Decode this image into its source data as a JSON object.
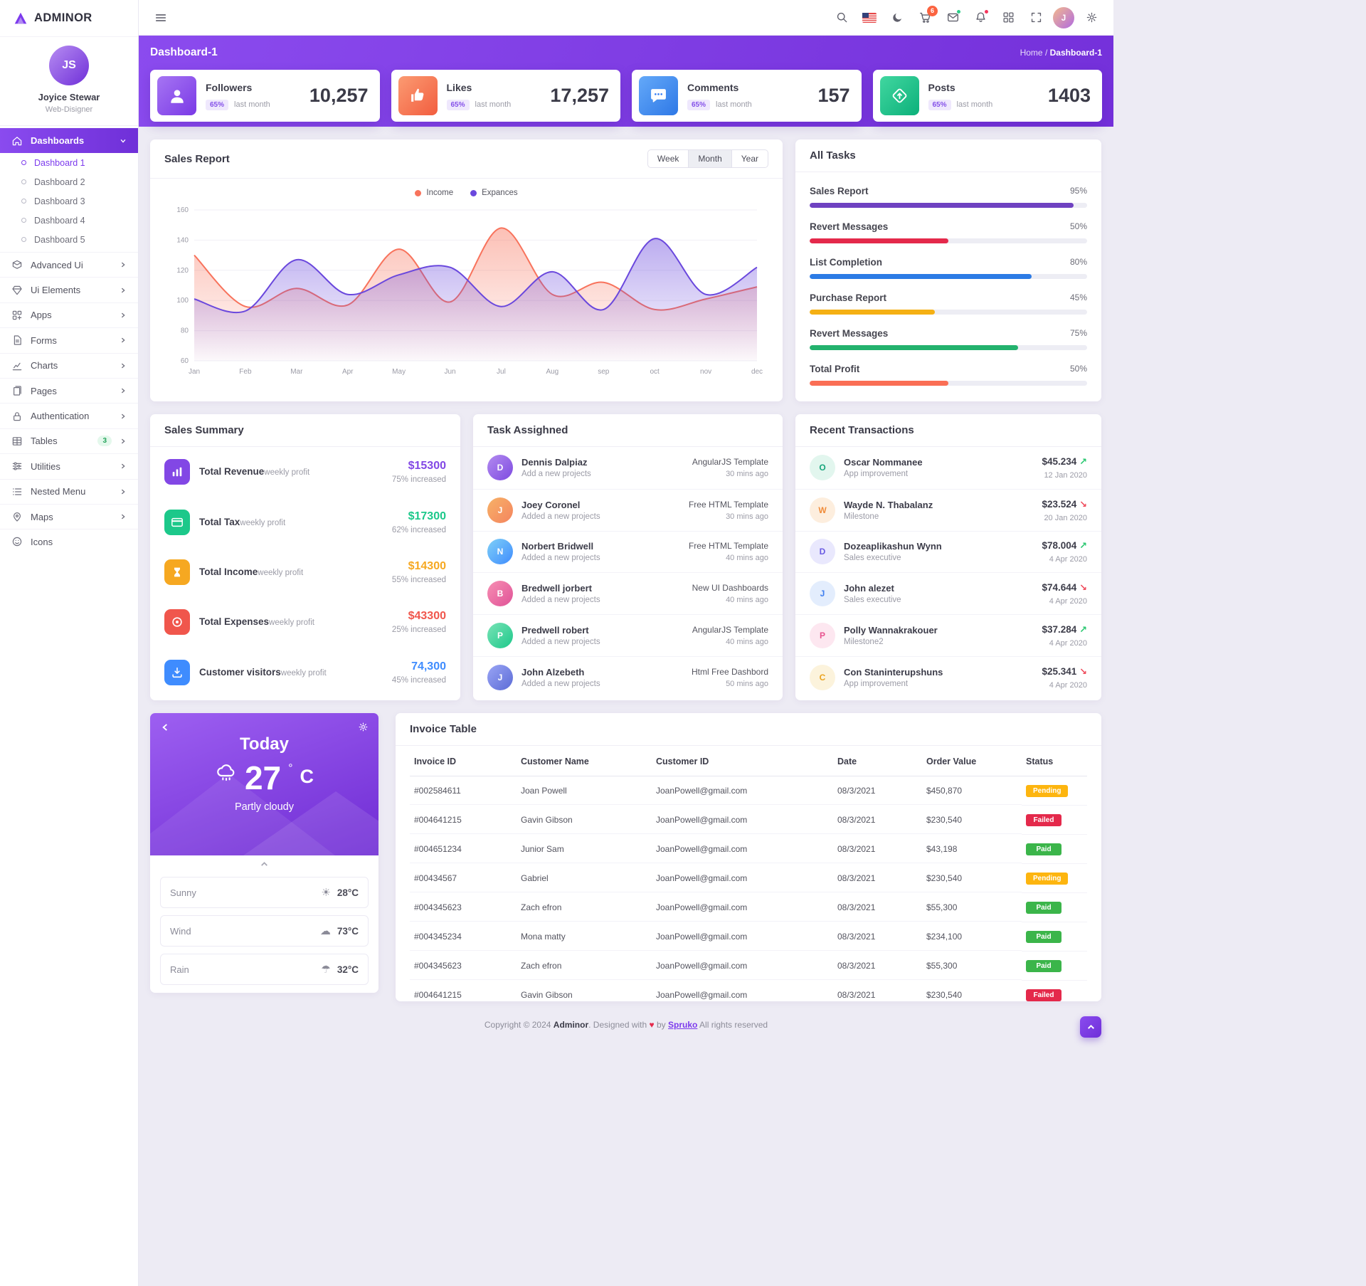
{
  "brand": {
    "name": "ADMINOR"
  },
  "sidebar": {
    "profile": {
      "name": "Joyice Stewar",
      "role": "Web-Disigner",
      "initials": "JS"
    },
    "dashboards_label": "Dashboards",
    "dashboard_children": [
      {
        "label": "Dashboard 1"
      },
      {
        "label": "Dashboard 2"
      },
      {
        "label": "Dashboard 3"
      },
      {
        "label": "Dashboard 4"
      },
      {
        "label": "Dashboard 5"
      }
    ],
    "items": [
      {
        "label": "Advanced Ui"
      },
      {
        "label": "Ui Elements"
      },
      {
        "label": "Apps"
      },
      {
        "label": "Forms"
      },
      {
        "label": "Charts"
      },
      {
        "label": "Pages"
      },
      {
        "label": "Authentication"
      },
      {
        "label": "Tables",
        "badge": "3"
      },
      {
        "label": "Utilities"
      },
      {
        "label": "Nested Menu"
      },
      {
        "label": "Maps"
      },
      {
        "label": "Icons"
      }
    ]
  },
  "header": {
    "cart_badge": "6"
  },
  "banner": {
    "title": "Dashboard-1",
    "breadcrumb_home": "Home",
    "breadcrumb_sep": "/",
    "breadcrumb_current": "Dashboard-1"
  },
  "stats": [
    {
      "label": "Followers",
      "badge": "65%",
      "period": "last month",
      "value": "10,257"
    },
    {
      "label": "Likes",
      "badge": "65%",
      "period": "last month",
      "value": "17,257"
    },
    {
      "label": "Comments",
      "badge": "65%",
      "period": "last month",
      "value": "157"
    },
    {
      "label": "Posts",
      "badge": "65%",
      "period": "last month",
      "value": "1403"
    }
  ],
  "sales_report": {
    "title": "Sales Report",
    "toggles": [
      "Week",
      "Month",
      "Year"
    ],
    "active_toggle": "Month",
    "chart_data": {
      "type": "area",
      "x": [
        "Jan",
        "Feb",
        "Mar",
        "Apr",
        "May",
        "Jun",
        "Jul",
        "Aug",
        "sep",
        "oct",
        "nov",
        "dec"
      ],
      "series": [
        {
          "name": "Income",
          "color": "#f8735c",
          "values": [
            130,
            96,
            108,
            97,
            134,
            99,
            148,
            104,
            112,
            94,
            101,
            109
          ]
        },
        {
          "name": "Expances",
          "color": "#6a48dd",
          "values": [
            101,
            93,
            127,
            104,
            117,
            122,
            96,
            119,
            94,
            141,
            104,
            122
          ]
        }
      ],
      "ylim": [
        60,
        160
      ],
      "yticks": [
        60,
        80,
        100,
        120,
        140,
        160
      ],
      "grid": true,
      "legend_position": "top"
    }
  },
  "all_tasks": {
    "title": "All Tasks",
    "items": [
      {
        "label": "Sales Report",
        "percent": "95%",
        "bar_style": "width:95%;background:#6f42c1"
      },
      {
        "label": "Revert Messages",
        "percent": "50%",
        "bar_style": "width:50%;background:#e4294b"
      },
      {
        "label": "List Completion",
        "percent": "80%",
        "bar_style": "width:80%;background:#2c7be5"
      },
      {
        "label": "Purchase Report",
        "percent": "45%",
        "bar_style": "width:45%;background:#f5b014"
      },
      {
        "label": "Revert Messages",
        "percent": "75%",
        "bar_style": "width:75%;background:#23b26d"
      },
      {
        "label": "Total Profit",
        "percent": "50%",
        "bar_style": "width:50%;background:#fa6e55"
      }
    ]
  },
  "sales_summary": {
    "title": "Sales Summary",
    "items": [
      {
        "label": "Total Revenue",
        "sub": "weekly profit",
        "value": "$15300",
        "change": "75% increased",
        "icon_style": "background:#8247e5",
        "value_style": "color:#8247e5"
      },
      {
        "label": "Total Tax",
        "sub": "weekly profit",
        "value": "$17300",
        "change": "62% increased",
        "icon_style": "background:#1cc88a",
        "value_style": "color:#1cc88a"
      },
      {
        "label": "Total Income",
        "sub": "weekly profit",
        "value": "$14300",
        "change": "55% increased",
        "icon_style": "background:#f6a821",
        "value_style": "color:#f6a821"
      },
      {
        "label": "Total Expenses",
        "sub": "weekly profit",
        "value": "$43300",
        "change": "25% increased",
        "icon_style": "background:#f0564c",
        "value_style": "color:#f0564c"
      },
      {
        "label": "Customer visitors",
        "sub": "weekly profit",
        "value": "74,300",
        "change": "45% increased",
        "icon_style": "background:#3f8cfe",
        "value_style": "color:#3f8cfe"
      }
    ]
  },
  "tasks_assigned": {
    "title": "Task Assighned",
    "items": [
      {
        "initial": "D",
        "avatar_style": "background:linear-gradient(135deg,#b38bf0,#7d4ae0)",
        "name": "Dennis Dalpiaz",
        "action": "Add a new projects",
        "meta": "AngularJS Template",
        "time": "30 mins ago"
      },
      {
        "initial": "J",
        "avatar_style": "background:linear-gradient(135deg,#f7b267,#f4845f)",
        "name": "Joey Coronel",
        "action": "Added a new projects",
        "meta": "Free HTML Template",
        "time": "30 mins ago"
      },
      {
        "initial": "N",
        "avatar_style": "background:linear-gradient(135deg,#7fd0f7,#3f8cfe)",
        "name": "Norbert Bridwell",
        "action": "Added a new projects",
        "meta": "Free HTML Template",
        "time": "40 mins ago"
      },
      {
        "initial": "B",
        "avatar_style": "background:linear-gradient(135deg,#f78fb3,#e05297)",
        "name": "Bredwell jorbert",
        "action": "Added a new projects",
        "meta": "New UI Dashboards",
        "time": "40 mins ago"
      },
      {
        "initial": "P",
        "avatar_style": "background:linear-gradient(135deg,#79e3b6,#1cc88a)",
        "name": "Predwell robert",
        "action": "Added a new projects",
        "meta": "AngularJS Template",
        "time": "40 mins ago"
      },
      {
        "initial": "J",
        "avatar_style": "background:linear-gradient(135deg,#9aa5f5,#5b6bd6)",
        "name": "John Alzebeth",
        "action": "Added a new projects",
        "meta": "Html Free Dashbord",
        "time": "50 mins ago"
      }
    ]
  },
  "transactions": {
    "title": "Recent Transactions",
    "items": [
      {
        "initial": "O",
        "avatar_style": "background:#e2f6ee;color:#18a57c",
        "name": "Oscar Nommanee",
        "role": "App improvement",
        "amount": "$45.234",
        "arrow": "↗",
        "arrow_style": "color:#28c76f",
        "date": "12 Jan 2020"
      },
      {
        "initial": "W",
        "avatar_style": "background:#fdeede;color:#f08c3a",
        "name": "Wayde N. Thabalanz",
        "role": "Milestone",
        "amount": "$23.524",
        "arrow": "↘",
        "arrow_style": "color:#ef4a5a",
        "date": "20 Jan 2020"
      },
      {
        "initial": "D",
        "avatar_style": "background:#e9e8fd;color:#6a5be2",
        "name": "Dozeaplikashun Wynn",
        "role": "Sales executive",
        "amount": "$78.004",
        "arrow": "↗",
        "arrow_style": "color:#28c76f",
        "date": "4 Apr 2020"
      },
      {
        "initial": "J",
        "avatar_style": "background:#e3edfd;color:#3e7ef0",
        "name": "John alezet",
        "role": "Sales executive",
        "amount": "$74.644",
        "arrow": "↘",
        "arrow_style": "color:#ef4a5a",
        "date": "4 Apr 2020"
      },
      {
        "initial": "P",
        "avatar_style": "background:#fde7f0;color:#e8538f",
        "name": "Polly Wannakrakouer",
        "role": "Milestone2",
        "amount": "$37.284",
        "arrow": "↗",
        "arrow_style": "color:#28c76f",
        "date": "4 Apr 2020"
      },
      {
        "initial": "C",
        "avatar_style": "background:#fcf3dc;color:#eaa31f",
        "name": "Con Staninterupshuns",
        "role": "App improvement",
        "amount": "$25.341",
        "arrow": "↘",
        "arrow_style": "color:#ef4a5a",
        "date": "4 Apr 2020"
      }
    ]
  },
  "weather": {
    "title": "Today",
    "temp_value": "27",
    "temp_deg": "°",
    "temp_unit": "C",
    "condition": "Partly cloudy",
    "rows": [
      {
        "label": "Sunny",
        "icon": "☀",
        "value": "28°C"
      },
      {
        "label": "Wind",
        "icon": "☁",
        "value": "73°C"
      },
      {
        "label": "Rain",
        "icon": "☂",
        "value": "32°C"
      }
    ]
  },
  "invoice": {
    "title": "Invoice Table",
    "columns": [
      "Invoice ID",
      "Customer Name",
      "Customer ID",
      "Date",
      "Order Value",
      "Status"
    ],
    "rows": [
      {
        "id": "#002584611",
        "customer": "Joan Powell",
        "email": "JoanPowell@gmail.com",
        "date": "08/3/2021",
        "value": "$450,870",
        "status": "Pending",
        "status_style": "background:#fdb50f"
      },
      {
        "id": "#004641215",
        "customer": "Gavin Gibson",
        "email": "JoanPowell@gmail.com",
        "date": "08/3/2021",
        "value": "$230,540",
        "status": "Failed",
        "status_style": "background:#e4294b"
      },
      {
        "id": "#004651234",
        "customer": "Junior Sam",
        "email": "JoanPowell@gmail.com",
        "date": "08/3/2021",
        "value": "$43,198",
        "status": "Paid",
        "status_style": "background:#3bb54a"
      },
      {
        "id": "#00434567",
        "customer": "Gabriel",
        "email": "JoanPowell@gmail.com",
        "date": "08/3/2021",
        "value": "$230,540",
        "status": "Pending",
        "status_style": "background:#fdb50f"
      },
      {
        "id": "#004345623",
        "customer": "Zach efron",
        "email": "JoanPowell@gmail.com",
        "date": "08/3/2021",
        "value": "$55,300",
        "status": "Paid",
        "status_style": "background:#3bb54a"
      },
      {
        "id": "#004345234",
        "customer": "Mona matty",
        "email": "JoanPowell@gmail.com",
        "date": "08/3/2021",
        "value": "$234,100",
        "status": "Paid",
        "status_style": "background:#3bb54a"
      },
      {
        "id": "#004345623",
        "customer": "Zach efron",
        "email": "JoanPowell@gmail.com",
        "date": "08/3/2021",
        "value": "$55,300",
        "status": "Paid",
        "status_style": "background:#3bb54a"
      },
      {
        "id": "#004641215",
        "customer": "Gavin Gibson",
        "email": "JoanPowell@gmail.com",
        "date": "08/3/2021",
        "value": "$230,540",
        "status": "Failed",
        "status_style": "background:#e4294b"
      }
    ]
  },
  "footer": {
    "copyright": "Copyright © 2024",
    "brand": "Adminor",
    "designed": ". Designed with",
    "heart": "♥",
    "by": "by",
    "link": "Spruko",
    "rights": "All rights reserved"
  }
}
